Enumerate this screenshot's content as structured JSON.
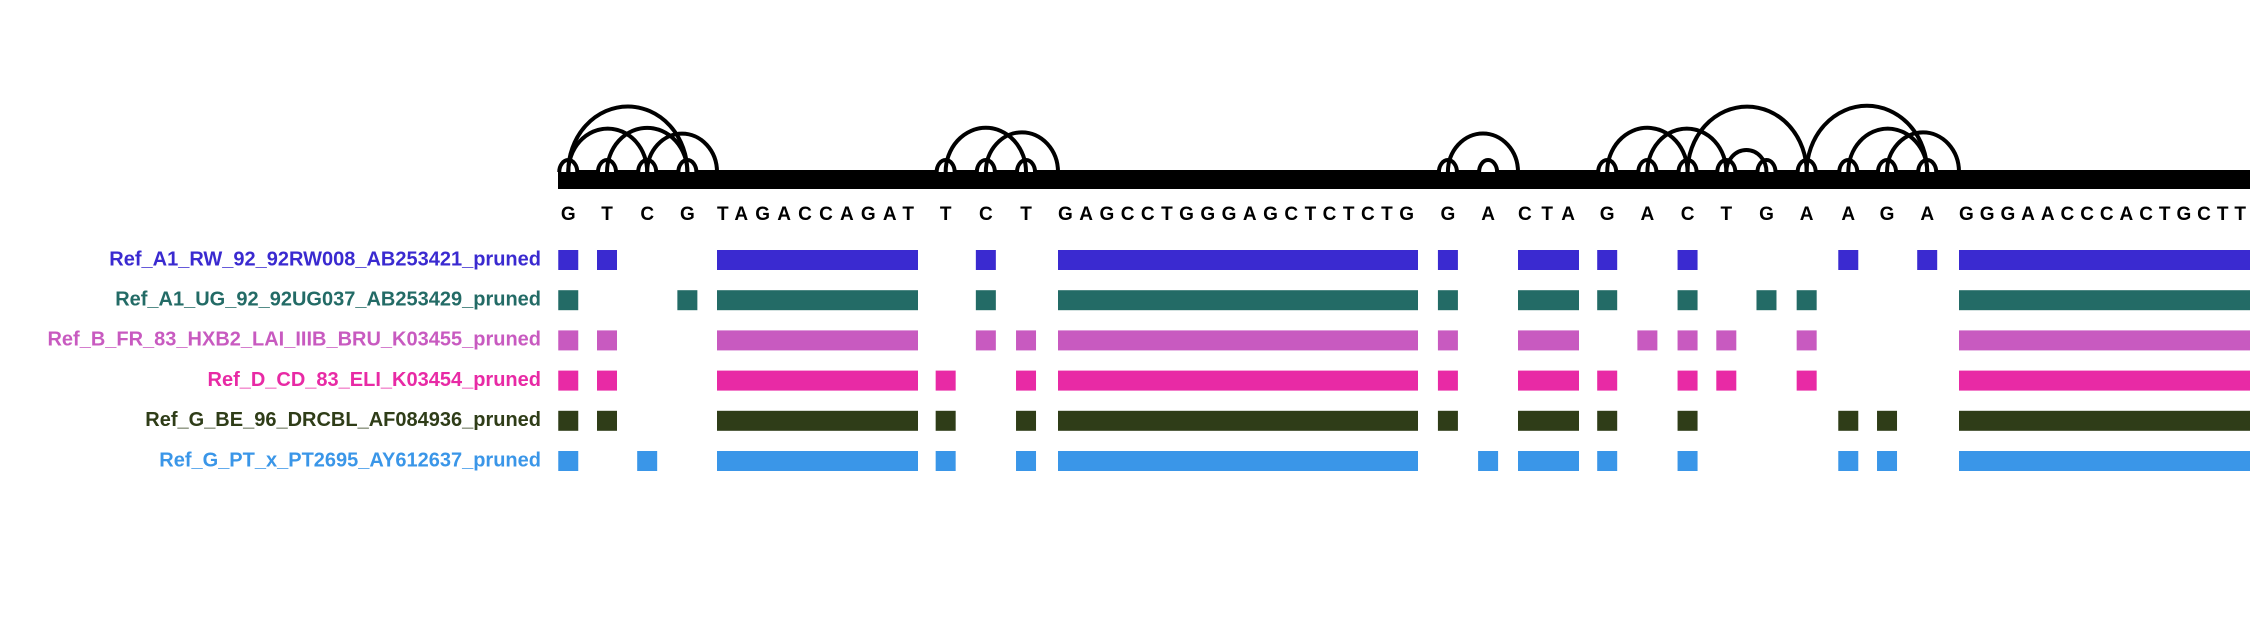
{
  "sequence": [
    "G",
    "T",
    "C",
    "G",
    "TAGACCAGAT",
    "T",
    "C",
    "T",
    "GAGCCTGGGAGCTCTCTG",
    "G",
    "A",
    "CTA",
    "G",
    "A",
    "C",
    "T",
    "G",
    "A",
    "A",
    "G",
    "A",
    "GGGAACCCACTGCTT"
  ],
  "rows": [
    {
      "name": "Ref_A1_RW_92_92RW008_AB253421_pruned",
      "color": "#3a2ad0",
      "columns": [
        0,
        1,
        4,
        6,
        8,
        9,
        11,
        12,
        14,
        18,
        20,
        21
      ]
    },
    {
      "name": "Ref_A1_UG_92_92UG037_AB253429_pruned",
      "color": "#236b66",
      "columns": [
        0,
        3,
        4,
        6,
        8,
        9,
        11,
        12,
        14,
        16,
        17,
        21
      ]
    },
    {
      "name": "Ref_B_FR_83_HXB2_LAI_IIIB_BRU_K03455_pruned",
      "color": "#c85ac0",
      "columns": [
        0,
        1,
        4,
        6,
        7,
        8,
        9,
        11,
        13,
        14,
        15,
        17,
        21
      ]
    },
    {
      "name": "Ref_D_CD_83_ELI_K03454_pruned",
      "color": "#e82aa5",
      "columns": [
        0,
        1,
        4,
        5,
        7,
        8,
        9,
        11,
        12,
        14,
        15,
        17,
        21
      ]
    },
    {
      "name": "Ref_G_BE_96_DRCBL_AF084936_pruned",
      "color": "#2f3d18",
      "columns": [
        0,
        1,
        4,
        5,
        7,
        8,
        9,
        11,
        12,
        14,
        18,
        19,
        21
      ]
    },
    {
      "name": "Ref_G_PT_x_PT2695_AY612637_pruned",
      "color": "#3a96e8",
      "columns": [
        0,
        2,
        4,
        5,
        7,
        8,
        10,
        11,
        12,
        14,
        18,
        19,
        21
      ]
    }
  ]
}
